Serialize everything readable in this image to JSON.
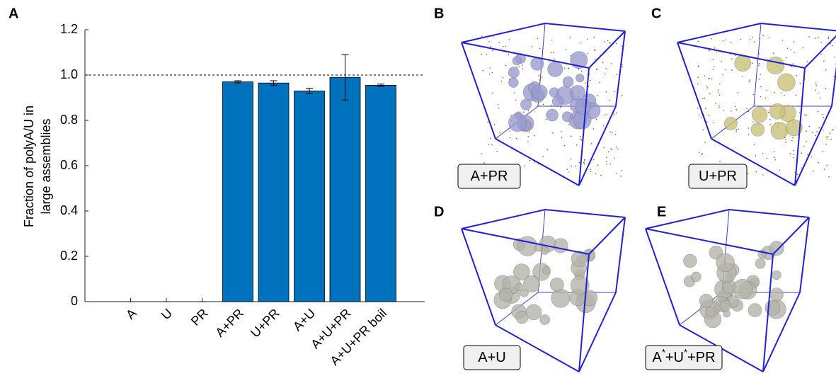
{
  "chart_data": {
    "type": "bar",
    "panel": "A",
    "ylabel": [
      "Fraction of polyA/U in",
      "large assemblies"
    ],
    "categories": [
      "A",
      "U",
      "PR",
      "A+PR",
      "U+PR",
      "A+U",
      "A+U+PR",
      "A+U+PR boil"
    ],
    "values": [
      0,
      0,
      0,
      0.97,
      0.965,
      0.93,
      0.99,
      0.955
    ],
    "errors": [
      0,
      0,
      0,
      0.005,
      0.01,
      0.012,
      0.1,
      0.005
    ],
    "color": "#0072bd",
    "ylim": [
      0,
      1.2
    ],
    "yticks": [
      0,
      0.2,
      0.4,
      0.6,
      0.8,
      {
        "value": 1,
        "label": "1.0"
      },
      1.2
    ],
    "reference_line": 1
  },
  "panels": [
    {
      "letter": "B",
      "label_parts": [
        {
          "text": "A+PR"
        }
      ],
      "blob_color": "#9a9cd0"
    },
    {
      "letter": "C",
      "label_parts": [
        {
          "text": "U+PR"
        }
      ],
      "blob_color": "#c9c27a"
    },
    {
      "letter": "D",
      "label_parts": [
        {
          "text": "A+U"
        }
      ],
      "blob_color": "#b4b4aa"
    },
    {
      "letter": "E",
      "label_parts": [
        {
          "text": "A"
        },
        {
          "text": "*",
          "sup": true
        },
        {
          "text": "+U"
        },
        {
          "text": "*",
          "sup": true
        },
        {
          "text": "+PR"
        }
      ],
      "blob_color": "#b4b4aa"
    }
  ]
}
